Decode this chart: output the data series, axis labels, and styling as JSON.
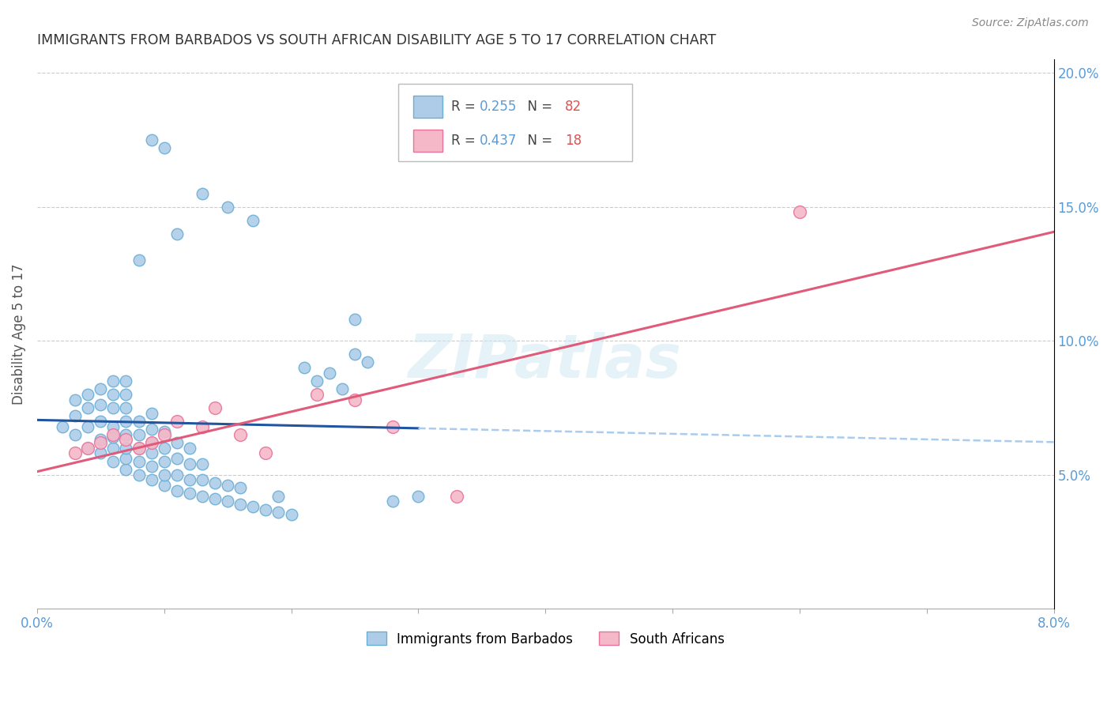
{
  "title": "IMMIGRANTS FROM BARBADOS VS SOUTH AFRICAN DISABILITY AGE 5 TO 17 CORRELATION CHART",
  "source": "Source: ZipAtlas.com",
  "ylabel": "Disability Age 5 to 17",
  "xlim": [
    0.0,
    0.08
  ],
  "ylim": [
    0.0,
    0.205
  ],
  "xticks": [
    0.0,
    0.01,
    0.02,
    0.03,
    0.04,
    0.05,
    0.06,
    0.07,
    0.08
  ],
  "xticklabels": [
    "0.0%",
    "",
    "",
    "",
    "",
    "",
    "",
    "",
    "8.0%"
  ],
  "yticks_right": [
    0.05,
    0.1,
    0.15,
    0.2
  ],
  "ytick_right_labels": [
    "5.0%",
    "10.0%",
    "15.0%",
    "20.0%"
  ],
  "legend1_R": "0.255",
  "legend1_N": "82",
  "legend2_R": "0.437",
  "legend2_N": "18",
  "scatter1_color": "#aecce8",
  "scatter1_edgecolor": "#6aaed6",
  "scatter2_color": "#f4b8c8",
  "scatter2_edgecolor": "#e8729a",
  "line1_color": "#2255a0",
  "line1_dash_color": "#aaccee",
  "line2_color": "#e05a7a",
  "watermark": "ZIPatlas",
  "barbados_x": [
    0.002,
    0.003,
    0.003,
    0.003,
    0.004,
    0.004,
    0.004,
    0.004,
    0.005,
    0.005,
    0.005,
    0.005,
    0.005,
    0.006,
    0.006,
    0.006,
    0.006,
    0.006,
    0.006,
    0.006,
    0.007,
    0.007,
    0.007,
    0.007,
    0.007,
    0.007,
    0.007,
    0.007,
    0.008,
    0.008,
    0.008,
    0.008,
    0.008,
    0.009,
    0.009,
    0.009,
    0.009,
    0.009,
    0.009,
    0.01,
    0.01,
    0.01,
    0.01,
    0.01,
    0.011,
    0.011,
    0.011,
    0.011,
    0.012,
    0.012,
    0.012,
    0.012,
    0.013,
    0.013,
    0.013,
    0.014,
    0.014,
    0.015,
    0.015,
    0.016,
    0.016,
    0.017,
    0.018,
    0.019,
    0.02,
    0.021,
    0.022,
    0.023,
    0.024,
    0.025,
    0.026,
    0.028,
    0.03,
    0.013,
    0.015,
    0.017,
    0.009,
    0.01,
    0.011,
    0.008,
    0.019,
    0.025
  ],
  "barbados_y": [
    0.068,
    0.065,
    0.072,
    0.078,
    0.06,
    0.068,
    0.075,
    0.08,
    0.058,
    0.063,
    0.07,
    0.076,
    0.082,
    0.055,
    0.06,
    0.064,
    0.068,
    0.075,
    0.08,
    0.085,
    0.052,
    0.056,
    0.06,
    0.065,
    0.07,
    0.075,
    0.08,
    0.085,
    0.05,
    0.055,
    0.06,
    0.065,
    0.07,
    0.048,
    0.053,
    0.058,
    0.062,
    0.067,
    0.073,
    0.046,
    0.05,
    0.055,
    0.06,
    0.066,
    0.044,
    0.05,
    0.056,
    0.062,
    0.043,
    0.048,
    0.054,
    0.06,
    0.042,
    0.048,
    0.054,
    0.041,
    0.047,
    0.04,
    0.046,
    0.039,
    0.045,
    0.038,
    0.037,
    0.036,
    0.035,
    0.09,
    0.085,
    0.088,
    0.082,
    0.095,
    0.092,
    0.04,
    0.042,
    0.155,
    0.15,
    0.145,
    0.175,
    0.172,
    0.14,
    0.13,
    0.042,
    0.108
  ],
  "southafrican_x": [
    0.003,
    0.004,
    0.005,
    0.006,
    0.007,
    0.008,
    0.009,
    0.01,
    0.011,
    0.013,
    0.014,
    0.016,
    0.018,
    0.022,
    0.025,
    0.028,
    0.033,
    0.06
  ],
  "southafrican_y": [
    0.058,
    0.06,
    0.062,
    0.065,
    0.063,
    0.06,
    0.062,
    0.065,
    0.07,
    0.068,
    0.075,
    0.065,
    0.058,
    0.08,
    0.078,
    0.068,
    0.042,
    0.148
  ],
  "line1_x_start": 0.0,
  "line1_x_end": 0.03,
  "line1_dash_x_start": 0.03,
  "line1_dash_x_end": 0.08
}
